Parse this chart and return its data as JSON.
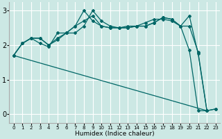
{
  "xlabel": "Humidex (Indice chaleur)",
  "background_color": "#cce8e4",
  "grid_color": "#ffffff",
  "line_color": "#006666",
  "xlim": [
    -0.5,
    23.5
  ],
  "ylim": [
    -0.25,
    3.25
  ],
  "yticks": [
    0,
    1,
    2,
    3
  ],
  "xticks": [
    0,
    1,
    2,
    3,
    4,
    5,
    6,
    7,
    8,
    9,
    10,
    11,
    12,
    13,
    14,
    15,
    16,
    17,
    18,
    19,
    20,
    21,
    22,
    23
  ],
  "series": [
    {
      "x": [
        0,
        1,
        2,
        3,
        4,
        5,
        6,
        7,
        8,
        9,
        10,
        11,
        12,
        13,
        14,
        15,
        16,
        17,
        18,
        19,
        20,
        21,
        22
      ],
      "y": [
        1.7,
        2.05,
        2.2,
        2.05,
        1.95,
        2.35,
        2.35,
        2.55,
        3.0,
        2.7,
        2.55,
        2.5,
        2.5,
        2.55,
        2.55,
        2.65,
        2.75,
        2.75,
        2.7,
        2.55,
        2.85,
        1.75,
        0.1
      ]
    },
    {
      "x": [
        0,
        1,
        2,
        3,
        4,
        5,
        6,
        7,
        8,
        9,
        10,
        11,
        12,
        13,
        14,
        15,
        16,
        17,
        18,
        19,
        20,
        21,
        22,
        23
      ],
      "y": [
        1.7,
        2.05,
        2.2,
        2.2,
        2.0,
        2.2,
        2.35,
        2.35,
        2.55,
        3.0,
        2.7,
        2.55,
        2.5,
        2.5,
        2.55,
        2.55,
        2.65,
        2.8,
        2.75,
        2.55,
        1.85,
        0.1,
        0.1,
        0.15
      ]
    },
    {
      "x": [
        0,
        1,
        2,
        3,
        4,
        5,
        6,
        7,
        8,
        9,
        10,
        11,
        12,
        13,
        14,
        15,
        16,
        17,
        18,
        19,
        20,
        21,
        22,
        23
      ],
      "y": [
        1.7,
        2.05,
        2.2,
        2.2,
        2.0,
        2.15,
        2.35,
        2.55,
        2.7,
        2.85,
        2.55,
        2.5,
        2.5,
        2.5,
        2.55,
        2.55,
        2.65,
        2.8,
        2.75,
        2.55,
        2.55,
        1.8,
        0.1,
        0.15
      ]
    },
    {
      "comment": "diagonal line from 0,1.7 to 22,0.1",
      "x": [
        0,
        22
      ],
      "y": [
        1.7,
        0.1
      ]
    }
  ]
}
